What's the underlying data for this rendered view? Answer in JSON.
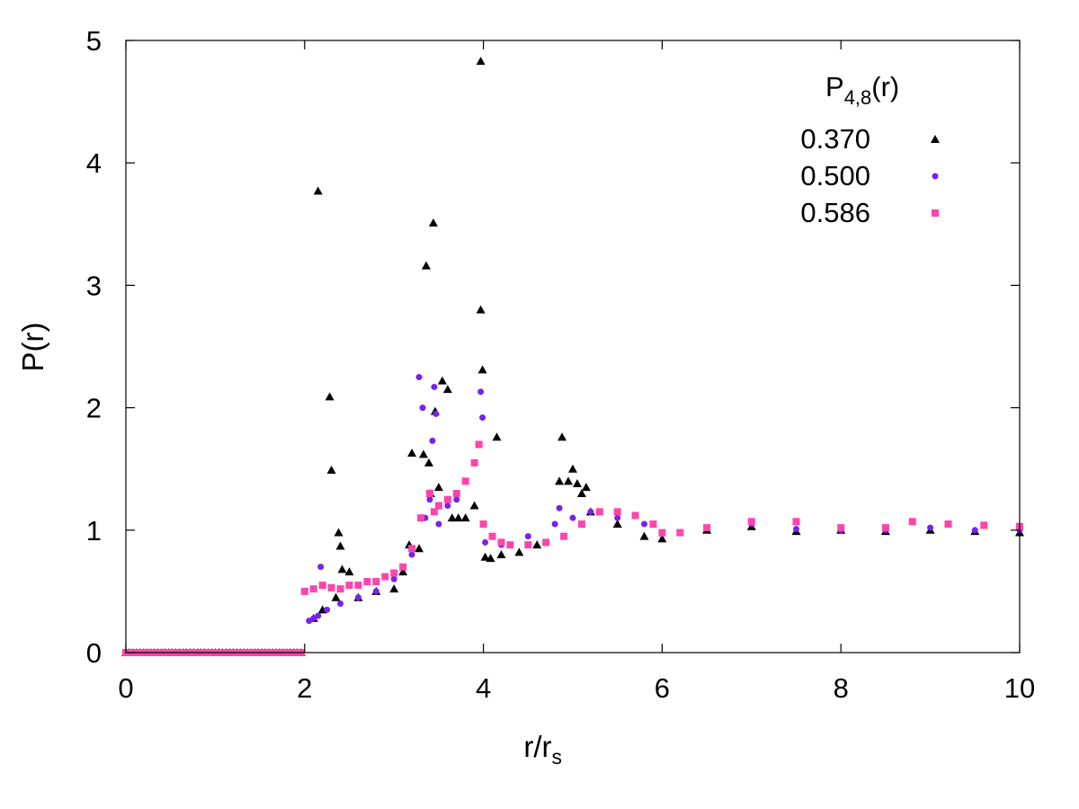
{
  "chart_data": {
    "type": "scatter",
    "title": "",
    "xlabel": {
      "main": "r/r",
      "sub": "s"
    },
    "ylabel": "P(r)",
    "xlim": [
      0,
      10
    ],
    "ylim": [
      0,
      5
    ],
    "xticks": [
      "0",
      "2",
      "4",
      "6",
      "8",
      "10"
    ],
    "yticks": [
      "0",
      "1",
      "2",
      "3",
      "4",
      "5"
    ],
    "grid": false,
    "legend": {
      "position": "top-right",
      "title": {
        "main": "P",
        "sub": "4,8",
        "tail": "(r)"
      }
    },
    "series": [
      {
        "name": "0.370",
        "color": "#000000",
        "marker": "triangle",
        "points": [
          [
            2.1,
            0.28
          ],
          [
            2.15,
            3.77
          ],
          [
            2.2,
            0.35
          ],
          [
            2.28,
            2.09
          ],
          [
            2.3,
            1.49
          ],
          [
            2.35,
            0.45
          ],
          [
            2.38,
            0.98
          ],
          [
            2.4,
            0.87
          ],
          [
            2.42,
            0.68
          ],
          [
            2.5,
            0.66
          ],
          [
            2.6,
            0.45
          ],
          [
            2.8,
            0.5
          ],
          [
            3.0,
            0.52
          ],
          [
            3.1,
            0.66
          ],
          [
            3.17,
            0.88
          ],
          [
            3.2,
            1.63
          ],
          [
            3.28,
            0.85
          ],
          [
            3.33,
            1.62
          ],
          [
            3.36,
            3.16
          ],
          [
            3.39,
            1.55
          ],
          [
            3.41,
            1.3
          ],
          [
            3.44,
            3.51
          ],
          [
            3.46,
            1.97
          ],
          [
            3.5,
            1.35
          ],
          [
            3.54,
            2.22
          ],
          [
            3.6,
            2.15
          ],
          [
            3.65,
            1.1
          ],
          [
            3.72,
            1.1
          ],
          [
            3.8,
            1.1
          ],
          [
            3.9,
            1.2
          ],
          [
            3.97,
            4.83
          ],
          [
            3.97,
            2.8
          ],
          [
            3.99,
            2.31
          ],
          [
            4.02,
            0.78
          ],
          [
            4.08,
            0.77
          ],
          [
            4.15,
            1.76
          ],
          [
            4.2,
            0.8
          ],
          [
            4.4,
            0.82
          ],
          [
            4.6,
            0.88
          ],
          [
            4.85,
            1.4
          ],
          [
            4.88,
            1.76
          ],
          [
            4.95,
            1.4
          ],
          [
            5.0,
            1.5
          ],
          [
            5.05,
            1.38
          ],
          [
            5.1,
            1.3
          ],
          [
            5.15,
            1.35
          ],
          [
            5.2,
            1.15
          ],
          [
            5.5,
            1.05
          ],
          [
            5.8,
            0.95
          ],
          [
            6.0,
            0.93
          ],
          [
            6.5,
            1.0
          ],
          [
            7.0,
            1.03
          ],
          [
            7.5,
            0.99
          ],
          [
            8.0,
            1.0
          ],
          [
            8.5,
            0.99
          ],
          [
            9.0,
            1.0
          ],
          [
            9.5,
            0.99
          ],
          [
            10.0,
            0.98
          ]
        ]
      },
      {
        "name": "0.500",
        "color": "#7722ee",
        "marker": "circle",
        "points": [
          [
            2.05,
            0.26
          ],
          [
            2.1,
            0.28
          ],
          [
            2.15,
            0.3
          ],
          [
            2.18,
            0.7
          ],
          [
            2.25,
            0.35
          ],
          [
            2.4,
            0.4
          ],
          [
            2.6,
            0.45
          ],
          [
            2.8,
            0.5
          ],
          [
            3.0,
            0.6
          ],
          [
            3.1,
            0.7
          ],
          [
            3.2,
            0.8
          ],
          [
            3.28,
            2.25
          ],
          [
            3.32,
            2.0
          ],
          [
            3.35,
            1.1
          ],
          [
            3.4,
            1.25
          ],
          [
            3.43,
            1.73
          ],
          [
            3.45,
            2.17
          ],
          [
            3.47,
            1.95
          ],
          [
            3.5,
            1.05
          ],
          [
            3.6,
            1.2
          ],
          [
            3.7,
            1.25
          ],
          [
            3.8,
            1.4
          ],
          [
            3.9,
            1.55
          ],
          [
            3.97,
            2.13
          ],
          [
            3.99,
            1.92
          ],
          [
            4.02,
            0.9
          ],
          [
            4.2,
            0.88
          ],
          [
            4.5,
            0.95
          ],
          [
            4.8,
            1.05
          ],
          [
            4.85,
            1.18
          ],
          [
            5.0,
            1.1
          ],
          [
            5.2,
            1.15
          ],
          [
            5.5,
            1.1
          ],
          [
            5.8,
            1.05
          ],
          [
            6.0,
            0.97
          ],
          [
            6.5,
            1.02
          ],
          [
            7.0,
            1.05
          ],
          [
            7.5,
            1.01
          ],
          [
            8.0,
            1.0
          ],
          [
            8.5,
            1.0
          ],
          [
            9.0,
            1.02
          ],
          [
            9.5,
            1.0
          ],
          [
            10.0,
            1.0
          ]
        ]
      },
      {
        "name": "0.586",
        "color": "#ff44aa",
        "marker": "square",
        "points": [
          [
            2.0,
            0.5
          ],
          [
            2.1,
            0.52
          ],
          [
            2.2,
            0.55
          ],
          [
            2.3,
            0.53
          ],
          [
            2.4,
            0.52
          ],
          [
            2.5,
            0.55
          ],
          [
            2.6,
            0.55
          ],
          [
            2.7,
            0.58
          ],
          [
            2.8,
            0.58
          ],
          [
            2.9,
            0.62
          ],
          [
            3.0,
            0.65
          ],
          [
            3.1,
            0.7
          ],
          [
            3.2,
            0.85
          ],
          [
            3.3,
            1.1
          ],
          [
            3.4,
            1.3
          ],
          [
            3.45,
            1.15
          ],
          [
            3.5,
            1.2
          ],
          [
            3.6,
            1.25
          ],
          [
            3.7,
            1.3
          ],
          [
            3.8,
            1.4
          ],
          [
            3.9,
            1.55
          ],
          [
            3.95,
            1.7
          ],
          [
            4.0,
            1.05
          ],
          [
            4.1,
            0.95
          ],
          [
            4.2,
            0.9
          ],
          [
            4.3,
            0.88
          ],
          [
            4.5,
            0.88
          ],
          [
            4.7,
            0.9
          ],
          [
            4.9,
            0.95
          ],
          [
            5.1,
            1.05
          ],
          [
            5.3,
            1.15
          ],
          [
            5.5,
            1.15
          ],
          [
            5.7,
            1.12
          ],
          [
            5.9,
            1.05
          ],
          [
            6.0,
            0.98
          ],
          [
            6.2,
            0.98
          ],
          [
            6.5,
            1.02
          ],
          [
            7.0,
            1.07
          ],
          [
            7.5,
            1.07
          ],
          [
            8.0,
            1.02
          ],
          [
            8.5,
            1.02
          ],
          [
            8.8,
            1.07
          ],
          [
            9.2,
            1.05
          ],
          [
            9.6,
            1.04
          ],
          [
            10.0,
            1.03
          ]
        ]
      }
    ]
  }
}
